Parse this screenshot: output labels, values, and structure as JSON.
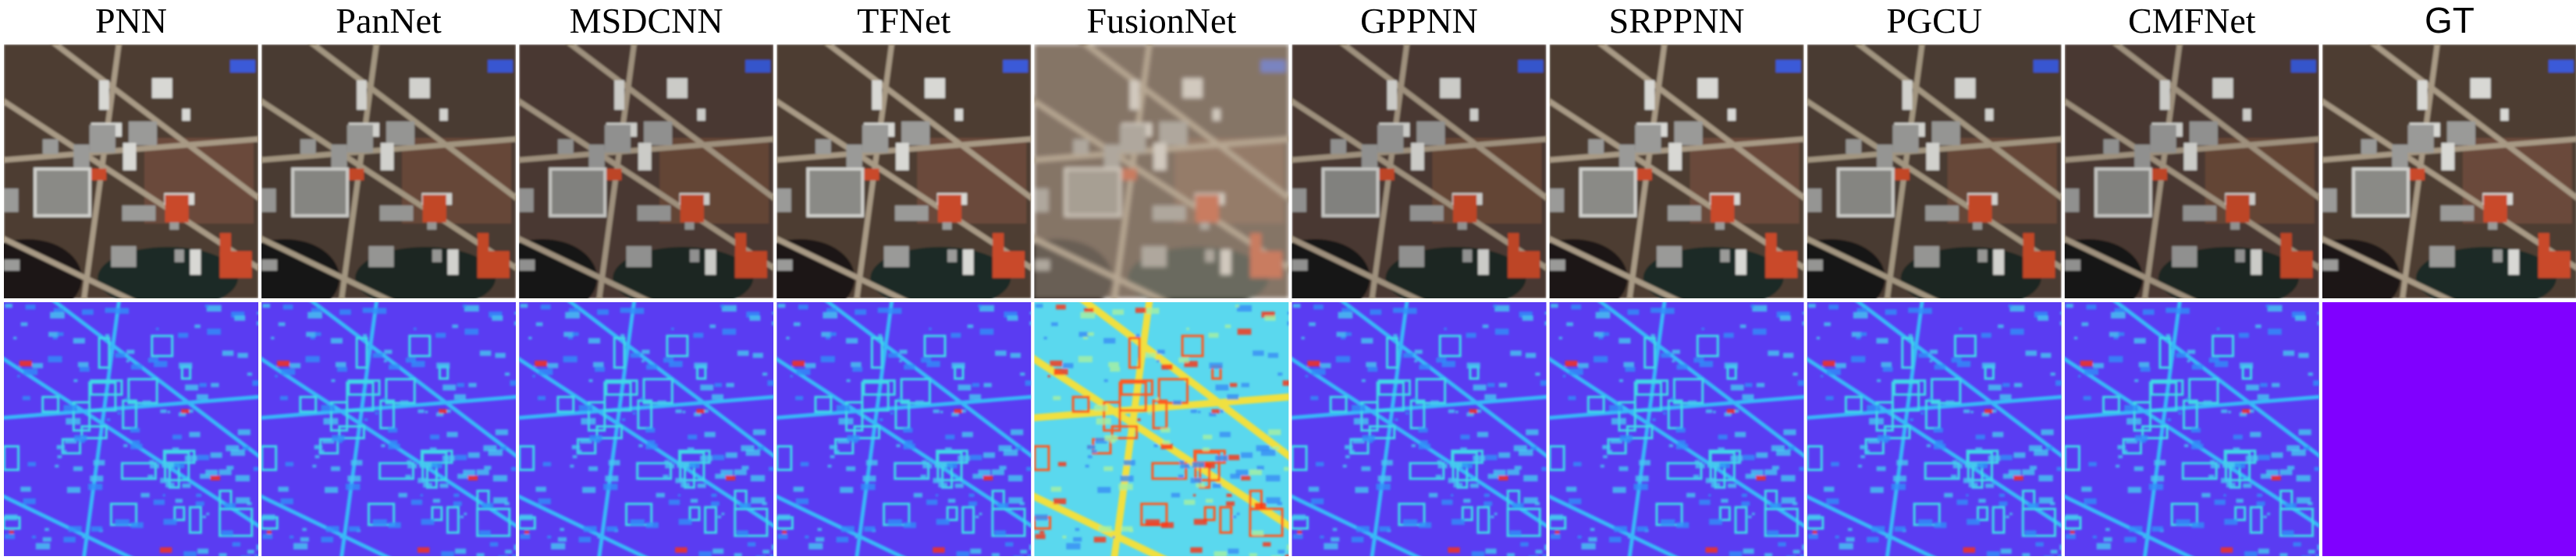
{
  "titles": [
    "PNN",
    "PanNet",
    "MSDCNN",
    "TFNet",
    "FusionNet",
    "GPPNN",
    "SRPPNN",
    "PGCU",
    "CMFNet",
    "GT"
  ]
}
